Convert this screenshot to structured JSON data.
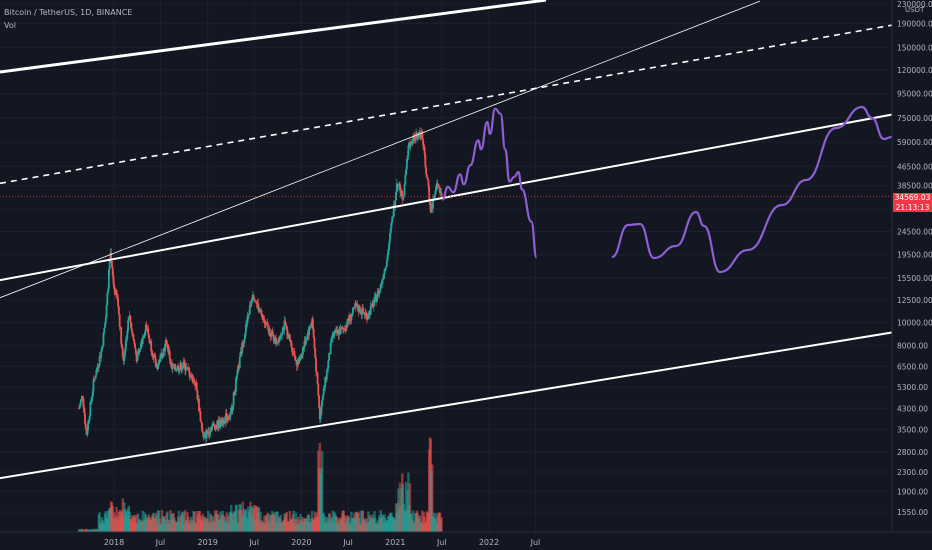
{
  "header": {
    "symbol_line": "Bitcoin / TetherUS, 1D, BINANCE",
    "indicator": "Vol"
  },
  "price_axis": {
    "currency": "USDT",
    "ticks": [
      "230000.00",
      "190000.00",
      "150000.00",
      "120000.00",
      "95000.00",
      "75000.00",
      "59000.00",
      "46500.00",
      "38500.00",
      "30500.00",
      "24500.00",
      "19500.00",
      "15500.00",
      "12500.00",
      "10000.00",
      "8000.00",
      "6500.00",
      "5300.00",
      "4300.00",
      "3500.00",
      "2800.00",
      "2300.00",
      "1900.00",
      "1550.00"
    ]
  },
  "time_axis": {
    "ticks": [
      "2018",
      "Jul",
      "2019",
      "Jul",
      "2020",
      "Jul",
      "2021",
      "Jul",
      "2022",
      "Jul"
    ]
  },
  "last_price": {
    "value": "34569.03",
    "countdown": "21:13:13"
  },
  "colors": {
    "background": "#131722",
    "up": "#26a69a",
    "down": "#ef5350",
    "projection": "#8d5fd3",
    "trendline": "#ffffff",
    "price_line": "#f23645",
    "axis_text": "#b2b5be"
  },
  "chart_data": {
    "type": "candlestick",
    "scale": "log",
    "ylim": [
      1400,
      240000
    ],
    "xlim": [
      "2017-08-17",
      "2022-12-31"
    ],
    "price_series": [
      [
        "2017-08-17",
        4300
      ],
      [
        "2017-09-01",
        4900
      ],
      [
        "2017-09-15",
        3300
      ],
      [
        "2017-10-01",
        4400
      ],
      [
        "2017-10-15",
        5700
      ],
      [
        "2017-11-01",
        6700
      ],
      [
        "2017-11-15",
        7800
      ],
      [
        "2017-12-01",
        10800
      ],
      [
        "2017-12-17",
        19500
      ],
      [
        "2018-01-01",
        14000
      ],
      [
        "2018-01-15",
        12500
      ],
      [
        "2018-02-06",
        6800
      ],
      [
        "2018-03-01",
        10800
      ],
      [
        "2018-04-01",
        6900
      ],
      [
        "2018-05-05",
        9800
      ],
      [
        "2018-06-15",
        6400
      ],
      [
        "2018-07-25",
        8300
      ],
      [
        "2018-08-15",
        6300
      ],
      [
        "2018-10-01",
        6600
      ],
      [
        "2018-11-15",
        5500
      ],
      [
        "2018-12-15",
        3200
      ],
      [
        "2019-01-15",
        3600
      ],
      [
        "2019-02-15",
        3700
      ],
      [
        "2019-04-01",
        4100
      ],
      [
        "2019-05-15",
        7900
      ],
      [
        "2019-06-26",
        13500
      ],
      [
        "2019-08-01",
        10400
      ],
      [
        "2019-09-25",
        8200
      ],
      [
        "2019-10-27",
        9800
      ],
      [
        "2019-12-18",
        6600
      ],
      [
        "2020-02-12",
        10300
      ],
      [
        "2020-03-13",
        4000
      ],
      [
        "2020-05-01",
        8800
      ],
      [
        "2020-06-15",
        9400
      ],
      [
        "2020-08-01",
        11700
      ],
      [
        "2020-09-15",
        10700
      ],
      [
        "2020-11-01",
        13800
      ],
      [
        "2020-12-01",
        19200
      ],
      [
        "2021-01-08",
        40000
      ],
      [
        "2021-02-01",
        33500
      ],
      [
        "2021-02-21",
        57000
      ],
      [
        "2021-03-13",
        61000
      ],
      [
        "2021-04-14",
        64500
      ],
      [
        "2021-05-19",
        30000
      ],
      [
        "2021-06-06",
        36000
      ],
      [
        "2021-06-15",
        40000
      ],
      [
        "2021-06-30",
        34569
      ]
    ],
    "projection_path": [
      [
        "2021-07-03",
        33500
      ],
      [
        "2021-07-25",
        38000
      ],
      [
        "2021-08-15",
        36000
      ],
      [
        "2021-09-10",
        43000
      ],
      [
        "2021-09-25",
        39000
      ],
      [
        "2021-10-20",
        47000
      ],
      [
        "2021-11-20",
        60000
      ],
      [
        "2021-12-01",
        55000
      ],
      [
        "2021-12-25",
        72000
      ],
      [
        "2022-01-05",
        64000
      ],
      [
        "2022-01-25",
        82000
      ],
      [
        "2022-02-15",
        78000
      ],
      [
        "2022-03-05",
        55000
      ],
      [
        "2022-03-22",
        40000
      ],
      [
        "2022-04-10",
        42000
      ],
      [
        "2022-04-25",
        44000
      ],
      [
        "2022-05-10",
        37000
      ],
      [
        "2022-06-15",
        27000
      ],
      [
        "2022-07-05",
        19000
      ]
    ],
    "trendlines": [
      {
        "style": "solid",
        "p1": [
          "2018-04-01",
          19500
        ],
        "p2": [
          "2021-06-30",
          34000
        ]
      },
      {
        "style": "solid",
        "p1": [
          "2018-01-01",
          2600
        ],
        "p2": [
          "2021-06-30",
          4400
        ]
      },
      {
        "style": "dashed",
        "p1": [
          "2018-01-01",
          48000
        ],
        "p2": [
          "2021-06-30",
          85000
        ]
      },
      {
        "style": "thin",
        "p1": [
          "2017-12-17",
          19500
        ],
        "p2": [
          "2021-04-14",
          64500
        ]
      }
    ],
    "volume_note": "volume histogram drawn at bottom"
  }
}
